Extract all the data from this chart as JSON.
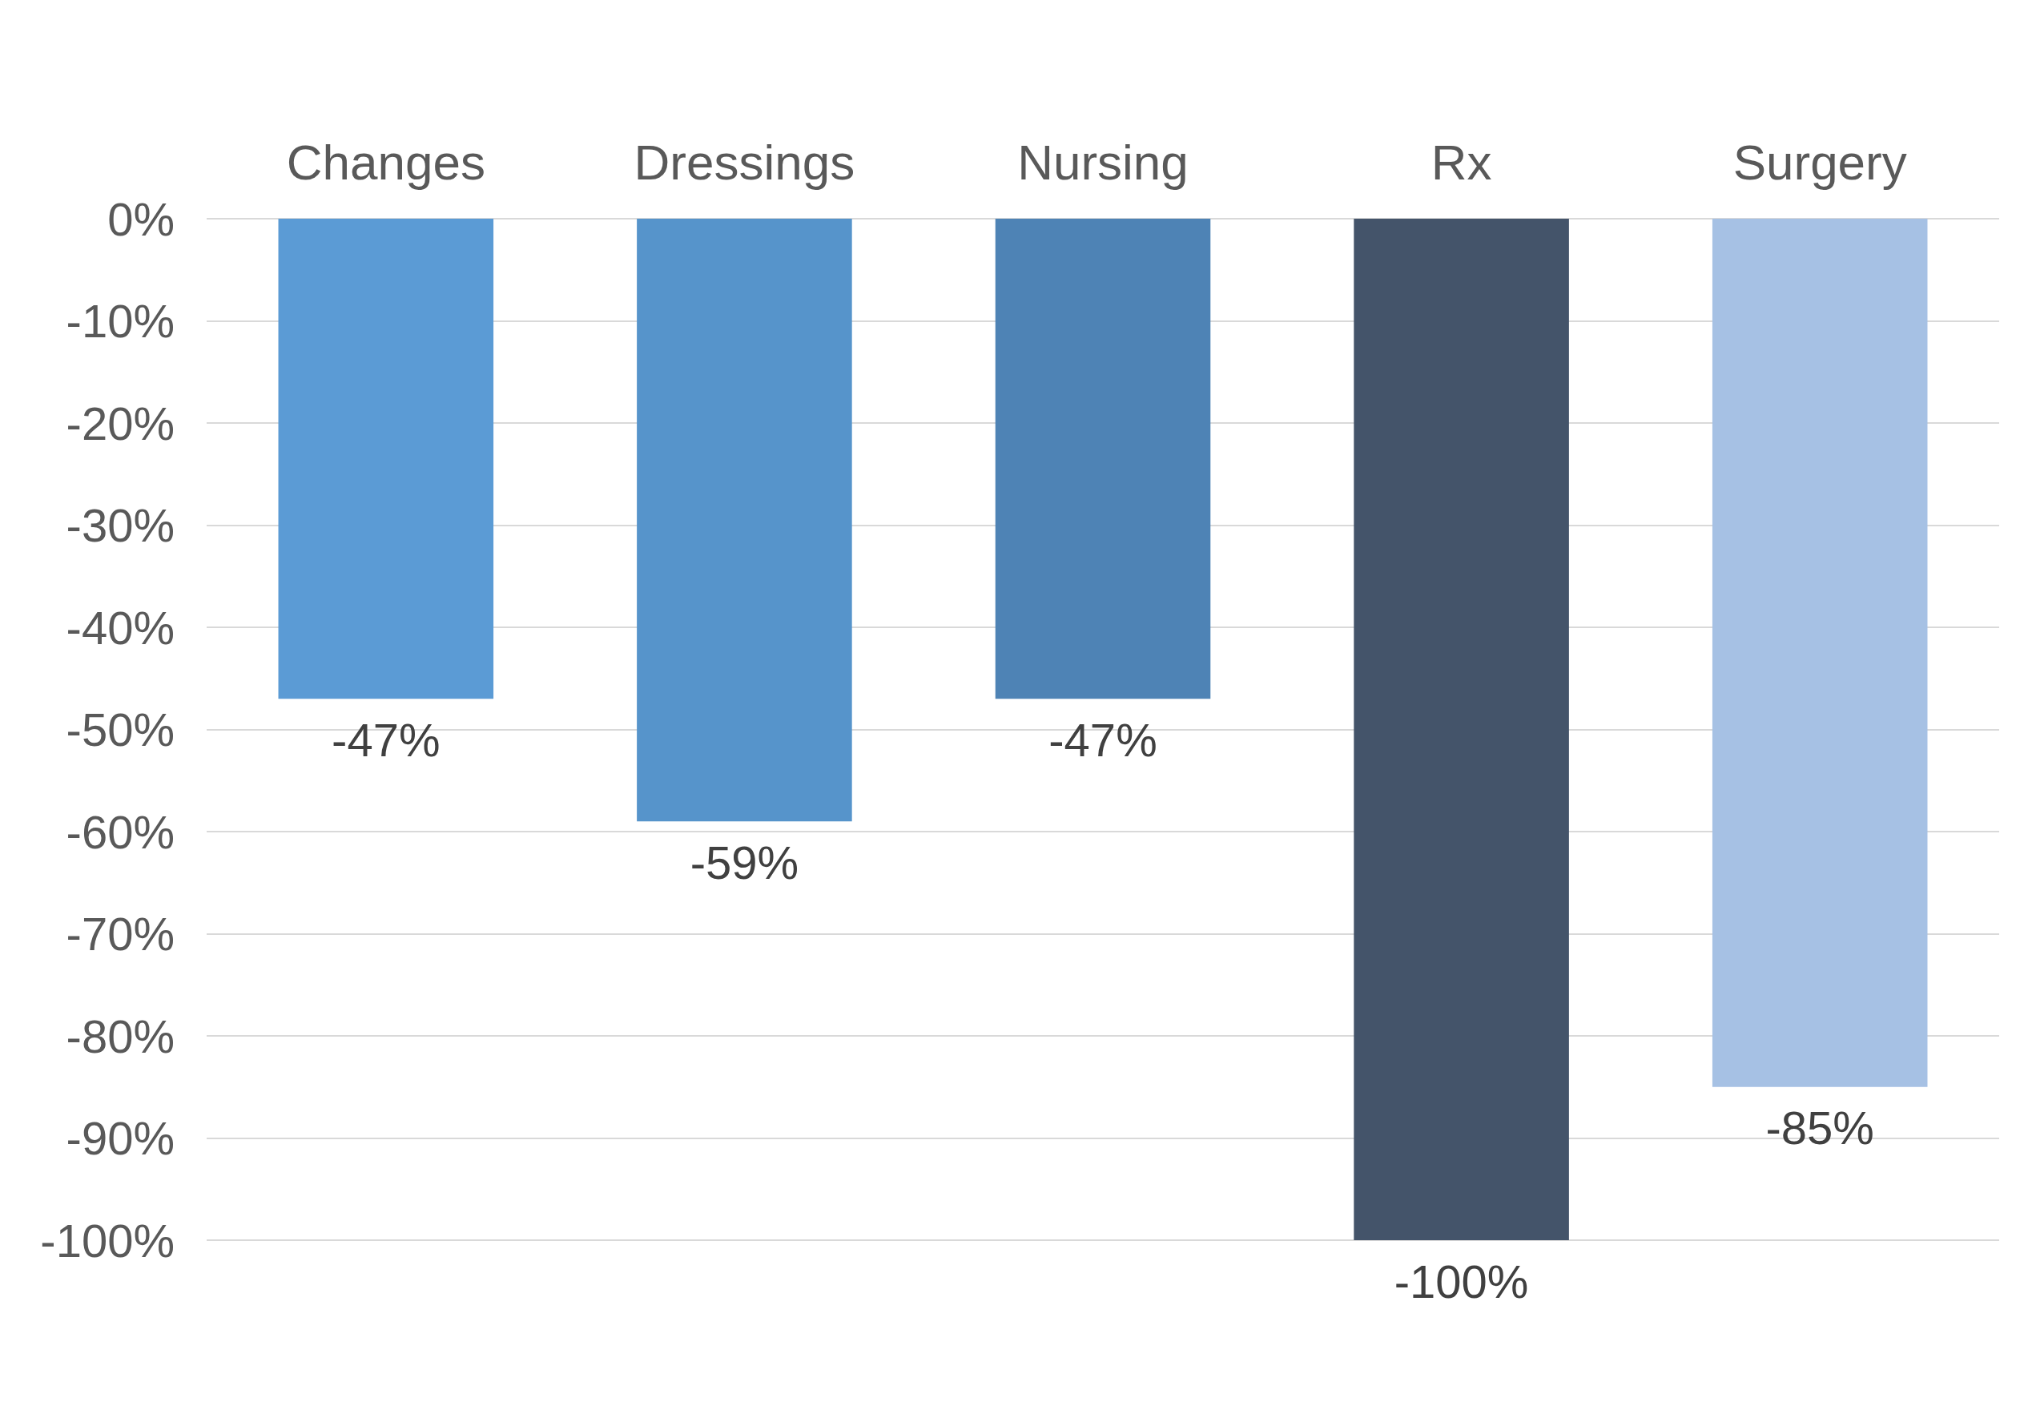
{
  "chart_data": {
    "type": "bar",
    "categories": [
      "Changes",
      "Dressings",
      "Nursing",
      "Rx",
      "Surgery"
    ],
    "values": [
      -47,
      -59,
      -47,
      -100,
      -85
    ],
    "colors": [
      "#5b9bd5",
      "#5694cb",
      "#4e83b5",
      "#44546a",
      "#a6c1e4"
    ],
    "value_labels": [
      "-47%",
      "-59%",
      "-47%",
      "-100%",
      "-85%"
    ],
    "ylim": [
      -100,
      0
    ],
    "yticks": [
      {
        "value": 0,
        "label": "0%"
      },
      {
        "value": -10,
        "label": "-10%"
      },
      {
        "value": -20,
        "label": "-20%"
      },
      {
        "value": -30,
        "label": "-30%"
      },
      {
        "value": -40,
        "label": "-40%"
      },
      {
        "value": -50,
        "label": "-50%"
      },
      {
        "value": -60,
        "label": "-60%"
      },
      {
        "value": -70,
        "label": "-70%"
      },
      {
        "value": -80,
        "label": "-80%"
      },
      {
        "value": -90,
        "label": "-90%"
      },
      {
        "value": -100,
        "label": "-100%"
      }
    ],
    "grid": "y"
  }
}
